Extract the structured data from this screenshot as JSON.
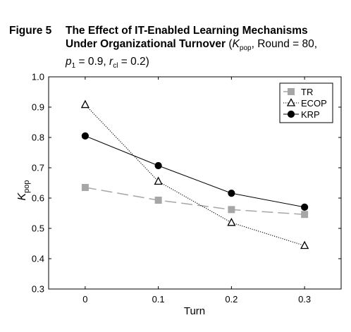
{
  "figure": {
    "label": "Figure 5",
    "title_bold_line1": "The Effect of IT-Enabled Learning Mechanisms",
    "title_bold_line2": "Under Organizational Turnover",
    "params_open": " (",
    "params_k_main": "K",
    "params_k_sub": "pop",
    "params_round": ", Round = 80,",
    "params_p_main": "p",
    "params_p_sub": "1",
    "params_p_val": " = 0.9, ",
    "params_r_main": "r",
    "params_r_sub": "cl",
    "params_r_val": " = 0.2)"
  },
  "chart_data": {
    "type": "line",
    "title": "",
    "xlabel": "Turn",
    "ylabel_main": "K",
    "ylabel_sub": "pop",
    "x": [
      0,
      0.1,
      0.2,
      0.3
    ],
    "xlim": [
      -0.05,
      0.35
    ],
    "ylim": [
      0.3,
      1.0
    ],
    "x_ticks": [
      "0",
      "0.1",
      "0.2",
      "0.3"
    ],
    "y_ticks": [
      "0.3",
      "0.4",
      "0.5",
      "0.6",
      "0.7",
      "0.8",
      "0.9",
      "1.0"
    ],
    "grid": false,
    "legend_position": "top-right",
    "series": [
      {
        "name": "TR",
        "values": [
          0.635,
          0.593,
          0.562,
          0.546
        ],
        "color": "#a6a6a6",
        "marker": "square",
        "line": "long-dash"
      },
      {
        "name": "ECOP",
        "values": [
          0.908,
          0.655,
          0.519,
          0.443
        ],
        "color": "#000000",
        "marker": "triangle",
        "line": "dotted"
      },
      {
        "name": "KRP",
        "values": [
          0.805,
          0.707,
          0.616,
          0.57
        ],
        "color": "#000000",
        "marker": "circle",
        "line": "solid"
      }
    ]
  }
}
